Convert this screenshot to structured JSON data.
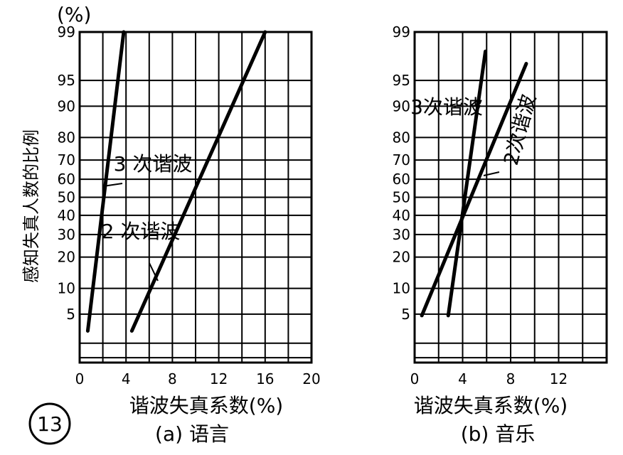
{
  "figure": {
    "number": "13",
    "y_unit": "(%)",
    "ylabel": "感知失真人数的比例"
  },
  "colors": {
    "ink": "#000000",
    "paper": "#ffffff"
  },
  "chart_data": [
    {
      "type": "line",
      "panel": "a",
      "caption": "(a) 语言",
      "xlabel": "谐波失真系数(%)",
      "ylabel": "感知失真人数的比例",
      "x_scale": "linear",
      "y_scale": "probability",
      "xlim": [
        0,
        20
      ],
      "ylim": [
        1,
        99
      ],
      "x_ticks": [
        0,
        4,
        8,
        12,
        16,
        20
      ],
      "y_ticks": [
        5,
        10,
        20,
        30,
        40,
        50,
        60,
        70,
        80,
        90,
        95,
        99
      ],
      "grid": true,
      "series": [
        {
          "name": "3 次谐波",
          "points": [
            [
              0.7,
              3
            ],
            [
              3.8,
              99
            ]
          ]
        },
        {
          "name": "2 次谐波",
          "points": [
            [
              4.5,
              3
            ],
            [
              16,
              99
            ]
          ]
        }
      ]
    },
    {
      "type": "line",
      "panel": "b",
      "caption": "(b) 音乐",
      "xlabel": "谐波失真系数(%)",
      "x_scale": "linear",
      "y_scale": "probability",
      "xlim": [
        0,
        16
      ],
      "ylim": [
        1,
        99
      ],
      "x_ticks": [
        0,
        4,
        8,
        12
      ],
      "y_ticks": [
        5,
        10,
        20,
        30,
        40,
        50,
        60,
        70,
        80,
        90,
        95,
        99
      ],
      "grid": true,
      "series": [
        {
          "name": "3次谐波",
          "points": [
            [
              2.8,
              4.8
            ],
            [
              5.9,
              98
            ]
          ]
        },
        {
          "name": "2次谐波",
          "points": [
            [
              0.6,
              4.8
            ],
            [
              9.3,
              97
            ]
          ]
        }
      ]
    }
  ]
}
